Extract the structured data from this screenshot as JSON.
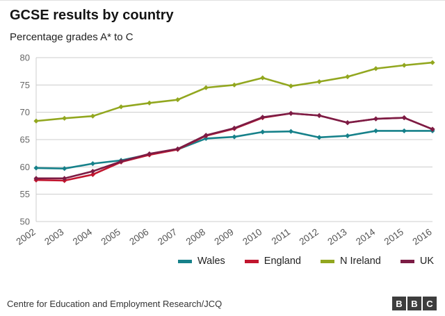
{
  "header": {
    "title": "GCSE results by country",
    "subtitle": "Percentage grades A* to C"
  },
  "chart_data": {
    "type": "line",
    "title": "GCSE results by country",
    "subtitle": "Percentage grades A* to C",
    "x": [
      2002,
      2003,
      2004,
      2005,
      2006,
      2007,
      2008,
      2009,
      2010,
      2011,
      2012,
      2013,
      2014,
      2015,
      2016
    ],
    "ylim": [
      50,
      80
    ],
    "yticks": [
      50,
      55,
      60,
      65,
      70,
      75,
      80
    ],
    "grid": "horizontal",
    "legend_position": "bottom",
    "series": [
      {
        "name": "Wales",
        "color": "#16818a",
        "values": [
          59.8,
          59.7,
          60.6,
          61.2,
          62.3,
          63.2,
          65.2,
          65.5,
          66.4,
          66.5,
          65.4,
          65.7,
          66.6,
          66.6,
          66.6
        ]
      },
      {
        "name": "England",
        "color": "#c1152e",
        "values": [
          57.6,
          57.5,
          58.6,
          60.9,
          62.2,
          63.2,
          65.7,
          67.0,
          69.0,
          69.8,
          69.4,
          68.1,
          68.8,
          69.0,
          66.9
        ]
      },
      {
        "name": "N Ireland",
        "color": "#92a71f",
        "values": [
          68.4,
          68.9,
          69.3,
          71.0,
          71.7,
          72.3,
          74.5,
          75.0,
          76.3,
          74.8,
          75.6,
          76.5,
          78.0,
          78.6,
          79.1
        ]
      },
      {
        "name": "UK",
        "color": "#7c1c45",
        "values": [
          57.9,
          57.9,
          59.2,
          61.0,
          62.4,
          63.3,
          65.8,
          67.1,
          69.1,
          69.8,
          69.4,
          68.1,
          68.8,
          69.0,
          66.9
        ]
      }
    ]
  },
  "footer": {
    "source": "Centre for Education and Employment Research/JCQ",
    "logo_letters": [
      "B",
      "B",
      "C"
    ]
  }
}
